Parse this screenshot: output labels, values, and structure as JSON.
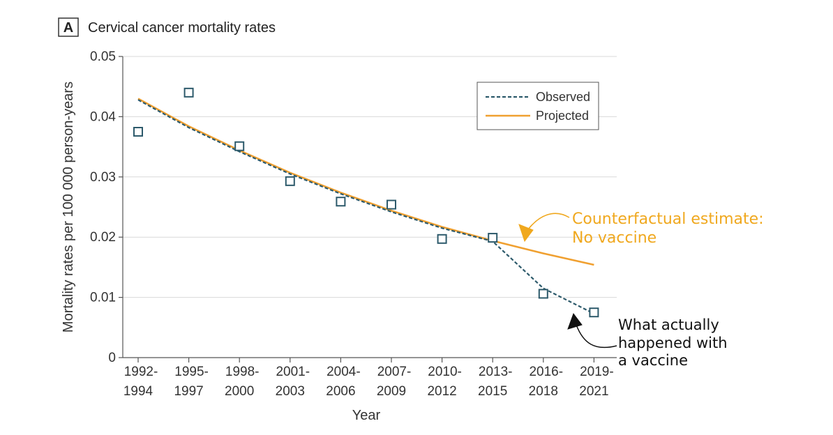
{
  "panel": {
    "label": "A",
    "title": "Cervical cancer mortality rates"
  },
  "chart_data": {
    "type": "scatter",
    "xlabel": "Year",
    "ylabel": "Mortality rates per 100 000 person-years",
    "ylim": [
      0,
      0.05
    ],
    "yticks": [
      {
        "value": 0,
        "label": "0"
      },
      {
        "value": 0.01,
        "label": "0.01"
      },
      {
        "value": 0.02,
        "label": "0.02"
      },
      {
        "value": 0.03,
        "label": "0.03"
      },
      {
        "value": 0.04,
        "label": "0.04"
      },
      {
        "value": 0.05,
        "label": "0.05"
      }
    ],
    "categories": [
      [
        "1992-",
        "1994"
      ],
      [
        "1995-",
        "1997"
      ],
      [
        "1998-",
        "2000"
      ],
      [
        "2001-",
        "2003"
      ],
      [
        "2004-",
        "2006"
      ],
      [
        "2007-",
        "2009"
      ],
      [
        "2010-",
        "2012"
      ],
      [
        "2013-",
        "2015"
      ],
      [
        "2016-",
        "2018"
      ],
      [
        "2019-",
        "2021"
      ]
    ],
    "points": [
      0.0375,
      0.044,
      0.0351,
      0.0293,
      0.0259,
      0.0254,
      0.0197,
      0.0199,
      0.0106,
      0.0075
    ],
    "series": [
      {
        "name": "Observed",
        "style": "dashed",
        "color": "#2d5a6b",
        "values": [
          0.0428,
          0.0382,
          0.0342,
          0.0305,
          0.0272,
          0.0242,
          0.0215,
          0.0193,
          0.0115,
          0.0073
        ]
      },
      {
        "name": "Projected",
        "style": "solid",
        "color": "#f0a030",
        "values": [
          0.043,
          0.0384,
          0.0344,
          0.0307,
          0.0274,
          0.0244,
          0.0217,
          0.0194,
          0.0173,
          0.0154
        ]
      }
    ],
    "legend_position": "top-right",
    "grid": true
  },
  "annotations": {
    "counterfactual": [
      "Counterfactual estimate:",
      "No vaccine"
    ],
    "counterfactual_color": "#f0a81e",
    "actual": [
      "What actually",
      "happened with",
      "a vaccine"
    ]
  }
}
